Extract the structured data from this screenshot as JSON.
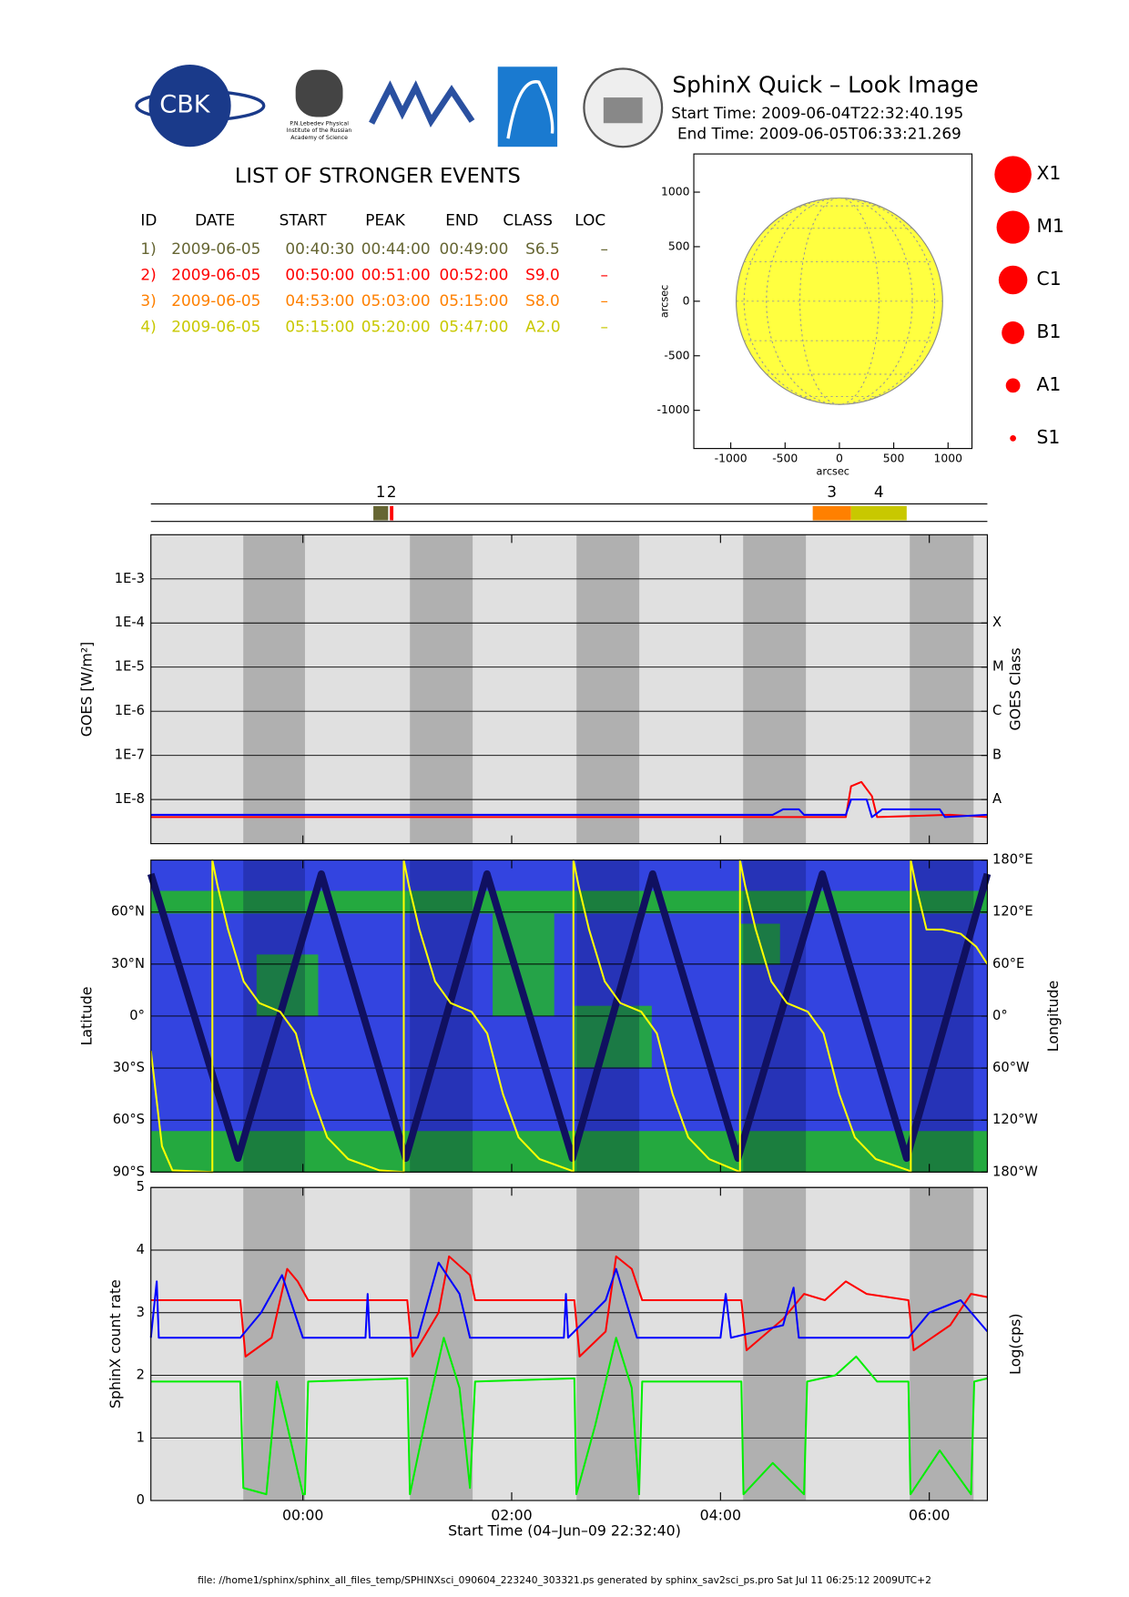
{
  "header": {
    "logo_cbk": "CBK",
    "logo_lebedev": [
      "P.N.Lebedev Physical",
      "Institute of the Russian",
      "Academy of Science"
    ],
    "title": "SphinX Quick – Look Image",
    "start_time": "Start Time: 2009-06-04T22:32:40.195",
    "end_time": "End Time: 2009-06-05T06:33:21.269"
  },
  "events": {
    "title": "LIST OF STRONGER EVENTS",
    "columns": [
      "ID",
      "DATE",
      "START",
      "PEAK",
      "END",
      "CLASS",
      "LOC"
    ],
    "rows": [
      {
        "id": "1)",
        "date": "2009-06-05",
        "start": "00:40:30",
        "peak": "00:44:00",
        "end": "00:49:00",
        "class": "S6.5",
        "loc": "–",
        "color": "#666633"
      },
      {
        "id": "2)",
        "date": "2009-06-05",
        "start": "00:50:00",
        "peak": "00:51:00",
        "end": "00:52:00",
        "class": "S9.0",
        "loc": "–",
        "color": "#ff0000"
      },
      {
        "id": "3)",
        "date": "2009-06-05",
        "start": "04:53:00",
        "peak": "05:03:00",
        "end": "05:15:00",
        "class": "S8.0",
        "loc": "–",
        "color": "#ff8000"
      },
      {
        "id": "4)",
        "date": "2009-06-05",
        "start": "05:15:00",
        "peak": "05:20:00",
        "end": "05:47:00",
        "class": "A2.0",
        "loc": "–",
        "color": "#c8c800"
      }
    ],
    "bar_labels": [
      "1",
      "2",
      "3",
      "4"
    ]
  },
  "size_legend": [
    "X1",
    "M1",
    "C1",
    "B1",
    "A1",
    "S1"
  ],
  "chart_data": [
    {
      "type": "solar_disk",
      "xlabel": "arcsec",
      "ylabel": "arcsec",
      "xlim": [
        -1340,
        1220
      ],
      "ylim": [
        -1350,
        1350
      ],
      "xticks": [
        -1000,
        -500,
        0,
        500,
        1000
      ],
      "yticks": [
        -1000,
        -500,
        0,
        500,
        1000
      ],
      "disk_radius": 950,
      "color": "#ffff40"
    },
    {
      "type": "line",
      "log_scale": true,
      "grid": true,
      "ylabel": "GOES [W/m²]",
      "y2label": "GOES Class",
      "ylim": [
        1e-09,
        0.01
      ],
      "yticks": [
        {
          "value": 1e-08,
          "label": "1E-8"
        },
        {
          "value": 1e-07,
          "label": "1E-7"
        },
        {
          "value": 1e-06,
          "label": "1E-6"
        },
        {
          "value": 1e-05,
          "label": "1E-5"
        },
        {
          "value": 0.0001,
          "label": "1E-4"
        },
        {
          "value": 0.001,
          "label": "1E-3"
        }
      ],
      "y2ticks": [
        {
          "value": 1e-08,
          "label": "A"
        },
        {
          "value": 1e-07,
          "label": "B"
        },
        {
          "value": 1e-06,
          "label": "C"
        },
        {
          "value": 1e-05,
          "label": "M"
        },
        {
          "value": 0.0001,
          "label": "X"
        }
      ],
      "series": [
        {
          "color": "#ff0000",
          "x": [
            -1.456,
            5.2,
            5.25,
            5.35,
            5.45,
            5.5,
            6.2,
            6.556
          ],
          "values": [
            4e-09,
            4e-09,
            2e-08,
            2.5e-08,
            1.2e-08,
            4e-09,
            4.5e-09,
            4e-09
          ]
        },
        {
          "color": "#0000ff",
          "x": [
            -1.456,
            4.5,
            4.6,
            4.75,
            4.8,
            5.2,
            5.25,
            5.4,
            5.45,
            5.55,
            6.1,
            6.15,
            6.556
          ],
          "values": [
            4.5e-09,
            4.5e-09,
            6e-09,
            6e-09,
            4.5e-09,
            4.5e-09,
            1e-08,
            1e-08,
            4e-09,
            6e-09,
            6e-09,
            4e-09,
            4.5e-09
          ]
        }
      ]
    },
    {
      "type": "line",
      "ylabel": "Latitude",
      "y2label": "Longitude",
      "grid": true,
      "ylim": [
        -90,
        90
      ],
      "yticks": [
        {
          "value": -90,
          "label": "90°S"
        },
        {
          "value": -60,
          "label": "60°S"
        },
        {
          "value": -30,
          "label": "30°S"
        },
        {
          "value": 0,
          "label": "0°"
        },
        {
          "value": 30,
          "label": "30°N"
        },
        {
          "value": 60,
          "label": "60°N"
        }
      ],
      "y2lim": [
        -180,
        180
      ],
      "y2ticks": [
        {
          "value": -180,
          "label": "180°W"
        },
        {
          "value": -120,
          "label": "120°W"
        },
        {
          "value": -60,
          "label": "60°W"
        },
        {
          "value": 0,
          "label": "0°"
        },
        {
          "value": 60,
          "label": "60°E"
        },
        {
          "value": 120,
          "label": "120°E"
        },
        {
          "value": 180,
          "label": "180°E"
        }
      ],
      "series": [
        {
          "color": "#101060",
          "x": [
            -1.456,
            -0.621,
            0.177,
            0.985,
            1.764,
            2.581,
            3.35,
            4.167,
            4.975,
            5.783,
            6.556
          ],
          "values": [
            82,
            -82,
            82,
            -82,
            82,
            -82,
            82,
            -82,
            82,
            -82,
            82
          ]
        },
        {
          "color": "#ffff00",
          "axis": "y2",
          "x": [
            -1.456,
            -1.35,
            -1.25,
            -0.867,
            -0.867,
            -0.817,
            -0.717,
            -0.567,
            -0.417,
            -0.217,
            -0.067,
            0.083,
            0.233,
            0.433,
            0.733,
            0.966,
            0.966,
            1.016,
            1.116,
            1.266,
            1.416,
            1.616,
            1.766,
            1.916,
            2.066,
            2.266,
            2.566,
            2.591,
            2.591,
            2.641,
            2.741,
            2.891,
            3.041,
            3.241,
            3.391,
            3.541,
            3.691,
            3.891,
            4.15,
            4.187,
            4.187,
            4.237,
            4.337,
            4.487,
            4.637,
            4.837,
            4.987,
            5.137,
            5.287,
            5.487,
            5.8,
            5.823,
            5.823,
            5.873,
            5.973,
            6.123,
            6.3,
            6.45,
            6.556
          ],
          "values": [
            -40,
            -150,
            -178,
            -180,
            180,
            150,
            100,
            40,
            15,
            5,
            -20,
            -90,
            -140,
            -165,
            -178,
            -180,
            180,
            150,
            100,
            40,
            15,
            5,
            -20,
            -90,
            -140,
            -165,
            -178,
            -180,
            180,
            150,
            100,
            40,
            15,
            5,
            -20,
            -90,
            -140,
            -165,
            -178,
            -180,
            180,
            150,
            100,
            40,
            15,
            5,
            -20,
            -90,
            -140,
            -165,
            -178,
            -180,
            180,
            150,
            100,
            100,
            95,
            80,
            60
          ]
        }
      ]
    },
    {
      "type": "line",
      "ylabel": "SphinX count rate",
      "y2label": "Log(cps)",
      "grid": true,
      "xlabel": "Start Time (04–Jun–09 22:32:40)",
      "xlim": [
        -1.456,
        6.556
      ],
      "xticks": [
        {
          "value": 0,
          "label": "00:00"
        },
        {
          "value": 2,
          "label": "02:00"
        },
        {
          "value": 4,
          "label": "04:00"
        },
        {
          "value": 6,
          "label": "06:00"
        }
      ],
      "ylim": [
        0,
        5
      ],
      "yticks": [
        0,
        1,
        2,
        3,
        4,
        5
      ],
      "shaded_intervals": [
        [
          -0.571,
          0.02
        ],
        [
          1.025,
          1.626
        ],
        [
          2.621,
          3.222
        ],
        [
          4.217,
          4.818
        ],
        [
          5.813,
          6.424
        ]
      ],
      "series": [
        {
          "color": "#ff0000",
          "x": [
            -1.456,
            -0.6,
            -0.55,
            -0.3,
            -0.15,
            -0.05,
            0.05,
            1.0,
            1.05,
            1.3,
            1.4,
            1.6,
            1.65,
            2.6,
            2.65,
            2.9,
            3.0,
            3.15,
            3.25,
            4.2,
            4.25,
            4.6,
            4.8,
            5.0,
            5.2,
            5.4,
            5.8,
            5.85,
            6.2,
            6.4,
            6.556
          ],
          "values": [
            3.2,
            3.2,
            2.3,
            2.6,
            3.7,
            3.5,
            3.2,
            3.2,
            2.3,
            3.0,
            3.9,
            3.6,
            3.2,
            3.2,
            2.3,
            2.7,
            3.9,
            3.7,
            3.2,
            3.2,
            2.4,
            2.9,
            3.3,
            3.2,
            3.5,
            3.3,
            3.2,
            2.4,
            2.8,
            3.3,
            3.25
          ]
        },
        {
          "color": "#0000ff",
          "x": [
            -1.456,
            -1.4,
            -1.38,
            -0.6,
            -0.4,
            -0.2,
            0.0,
            0.6,
            0.62,
            0.64,
            1.1,
            1.3,
            1.5,
            1.6,
            2.5,
            2.52,
            2.54,
            2.9,
            3.0,
            3.2,
            4.0,
            4.05,
            4.1,
            4.6,
            4.7,
            4.75,
            5.8,
            6.0,
            6.3,
            6.556
          ],
          "values": [
            2.6,
            3.5,
            2.6,
            2.6,
            3.0,
            3.6,
            2.6,
            2.6,
            3.3,
            2.6,
            2.6,
            3.8,
            3.3,
            2.6,
            2.6,
            3.3,
            2.6,
            3.2,
            3.7,
            2.6,
            2.6,
            3.3,
            2.6,
            2.8,
            3.4,
            2.6,
            2.6,
            3.0,
            3.2,
            2.7
          ]
        },
        {
          "color": "#00ee00",
          "x": [
            -1.456,
            -0.6,
            -0.57,
            -0.35,
            -0.25,
            -0.15,
            0.0,
            0.02,
            0.05,
            1.0,
            1.025,
            1.2,
            1.35,
            1.5,
            1.6,
            1.65,
            2.6,
            2.62,
            2.8,
            3.0,
            3.15,
            3.22,
            3.25,
            4.2,
            4.22,
            4.5,
            4.8,
            4.83,
            5.1,
            5.3,
            5.5,
            5.8,
            5.82,
            6.1,
            6.4,
            6.43,
            6.556
          ],
          "values": [
            1.9,
            1.9,
            0.2,
            0.1,
            1.9,
            1.2,
            0.1,
            0.1,
            1.9,
            1.95,
            0.1,
            1.5,
            2.6,
            1.8,
            0.2,
            1.9,
            1.95,
            0.1,
            1.2,
            2.6,
            1.8,
            0.1,
            1.9,
            1.9,
            0.1,
            0.6,
            0.1,
            1.9,
            2.0,
            2.3,
            1.9,
            1.9,
            0.1,
            0.8,
            0.1,
            1.9,
            1.95
          ]
        }
      ]
    }
  ],
  "footer": "file: //home1/sphinx/sphinx_all_files_temp/SPHINXsci_090604_223240_303321.ps generated by sphinx_sav2sci_ps.pro Sat Jul 11 06:25:12 2009UTC+2"
}
